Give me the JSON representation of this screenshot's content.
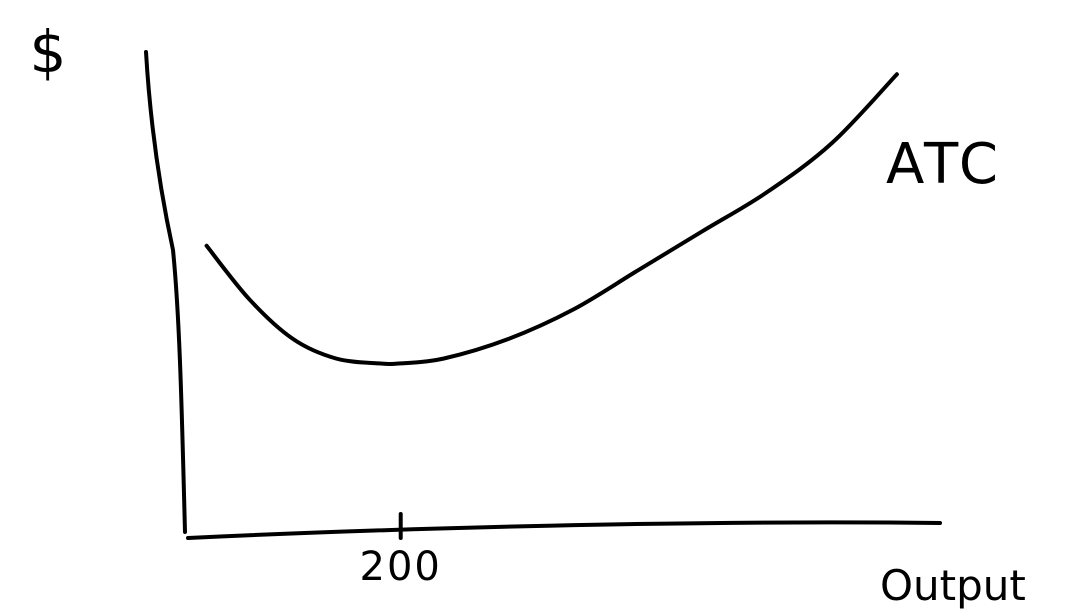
{
  "chart_data": {
    "type": "line",
    "title": "",
    "xlabel": "Output",
    "ylabel": "$",
    "grid": false,
    "legend": "none",
    "x_ticks": [
      {
        "value": 200,
        "label": "200"
      }
    ],
    "xlim": [
      0,
      700
    ],
    "ylim": [
      0,
      100
    ],
    "series": [
      {
        "name": "ATC",
        "x": [
          20,
          60,
          100,
          140,
          180,
          200,
          240,
          300,
          360,
          420,
          480,
          540,
          600,
          660
        ],
        "y": [
          58,
          47,
          39,
          35,
          34,
          34,
          35,
          39,
          45,
          53,
          61,
          69,
          79,
          93
        ]
      }
    ]
  }
}
